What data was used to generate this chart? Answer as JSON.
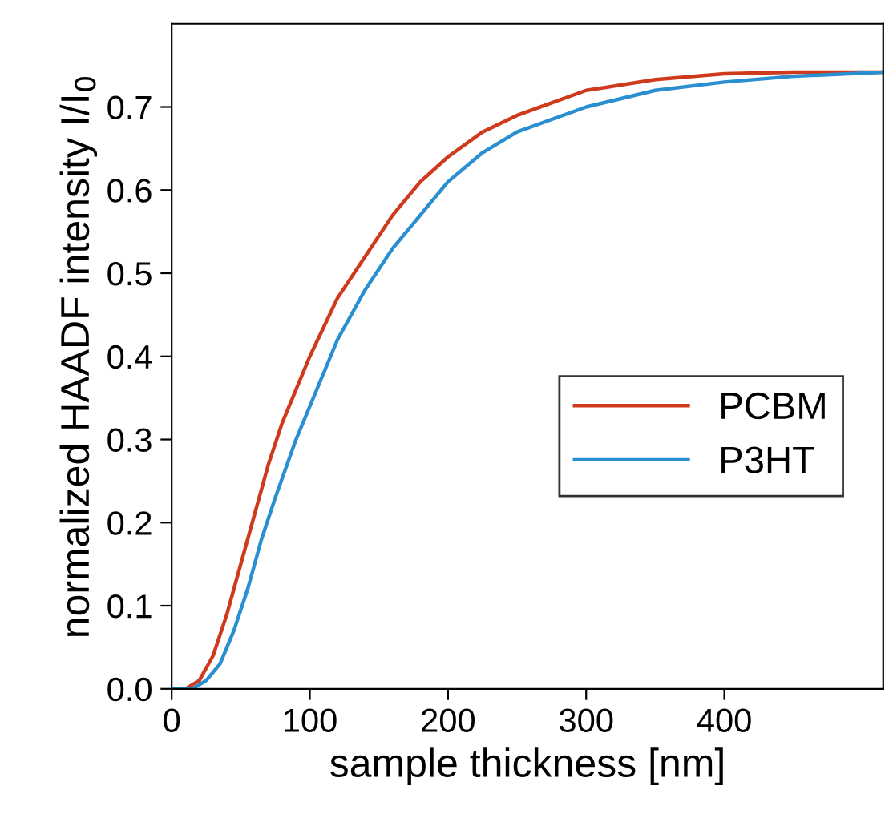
{
  "chart_data": {
    "type": "line",
    "xlabel": "sample thickness [nm]",
    "ylabel": "normalized HAADF intensity I/I$_{0}$",
    "xlim": [
      0,
      515
    ],
    "ylim": [
      0,
      0.8
    ],
    "xticks": [
      0,
      100,
      200,
      300,
      400
    ],
    "yticks": [
      {
        "value": 0,
        "label": "0.0"
      },
      {
        "value": 0.1,
        "label": "0.1"
      },
      {
        "value": 0.2,
        "label": "0.2"
      },
      {
        "value": 0.3,
        "label": "0.3"
      },
      {
        "value": 0.4,
        "label": "0.4"
      },
      {
        "value": 0.5,
        "label": "0.5"
      },
      {
        "value": 0.6,
        "label": "0.6"
      },
      {
        "value": 0.7,
        "label": "0.7"
      }
    ],
    "grid": false,
    "legend": "right",
    "marker": "none",
    "line_style": "solid",
    "series": [
      {
        "name": "PCBM",
        "color": "#d03a1c",
        "x": [
          0,
          10,
          20,
          30,
          40,
          50,
          60,
          70,
          80,
          100,
          120,
          140,
          160,
          180,
          200,
          225,
          250,
          275,
          300,
          350,
          400,
          450,
          515
        ],
        "values": [
          0,
          0,
          0.01,
          0.04,
          0.09,
          0.15,
          0.21,
          0.27,
          0.32,
          0.4,
          0.47,
          0.52,
          0.57,
          0.61,
          0.64,
          0.67,
          0.69,
          0.705,
          0.72,
          0.733,
          0.74,
          0.742,
          0.742
        ]
      },
      {
        "name": "P3HT",
        "color": "#2a8fd0",
        "x": [
          0,
          15,
          25,
          35,
          45,
          55,
          65,
          75,
          90,
          100,
          120,
          140,
          160,
          180,
          200,
          225,
          250,
          300,
          350,
          400,
          450,
          515
        ],
        "values": [
          0,
          0,
          0.01,
          0.03,
          0.07,
          0.12,
          0.18,
          0.23,
          0.3,
          0.34,
          0.42,
          0.48,
          0.53,
          0.57,
          0.61,
          0.645,
          0.67,
          0.7,
          0.72,
          0.73,
          0.737,
          0.742
        ]
      }
    ]
  }
}
